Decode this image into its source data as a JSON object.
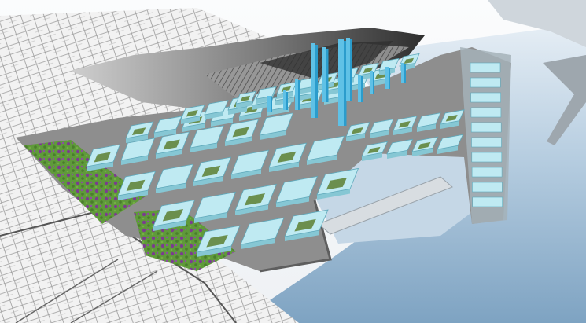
{
  "scene": {
    "description_visible_text": "",
    "colors": {
      "sky": "#f4f6f8",
      "sea_light": "#dbe7f1",
      "sea_mid": "#a9c4da",
      "sea_dark": "#6f93b3",
      "land_map_bg": "#eeeeee",
      "map_lines": "#8a8a8a",
      "terrain_dark": "#3a3a3a",
      "terrain_mid": "#8c8c8c",
      "platform": "#8d8d8d",
      "platform_dark": "#6f6f6f",
      "building": "#bfeaf2",
      "building_side": "#86c7d4",
      "building_edge": "#5fa9bb",
      "tower": "#5fc1e6",
      "tower_dark": "#2b9ccc",
      "park_green": "#5f9a3a",
      "park_purple": "#7a3d8e",
      "courtyard": "#6b8f4e"
    }
  }
}
